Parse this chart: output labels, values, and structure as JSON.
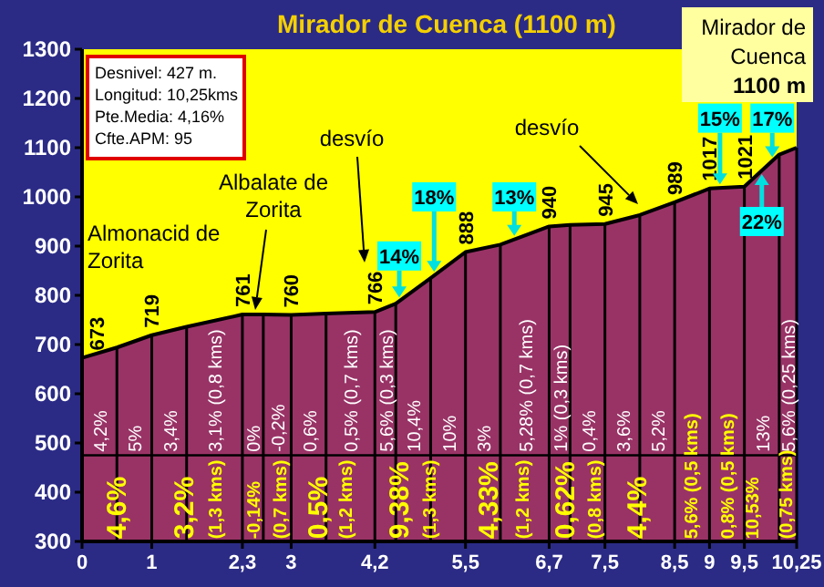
{
  "chart_data": {
    "type": "area",
    "title": "Mirador de Cuenca (1100 m)",
    "x": [
      0,
      0.5,
      1,
      1.5,
      2.3,
      2.6,
      3,
      3.5,
      4.2,
      4.5,
      5,
      5.5,
      6,
      6.7,
      7,
      7.5,
      8,
      8.5,
      9,
      9.5,
      10,
      10.25
    ],
    "series": [
      {
        "color": "#993366",
        "values": [
          673,
          694,
          719,
          736,
          761,
          761,
          760,
          763,
          766,
          783,
          835,
          888,
          903,
          940,
          943,
          945,
          963,
          989,
          1017,
          1021,
          1086,
          1100
        ],
        "value_labels": [
          "673",
          null,
          "719",
          null,
          "761",
          null,
          "760",
          null,
          "766",
          null,
          null,
          "888",
          null,
          "940",
          null,
          "945",
          null,
          "989",
          "1017",
          "1021",
          null,
          null
        ]
      }
    ],
    "xlim": [
      0,
      10.25
    ],
    "ylim": [
      300,
      1300
    ],
    "xticks": [
      0,
      1,
      {
        "value": 2.3,
        "label": "2,3"
      },
      3,
      {
        "value": 4.2,
        "label": "4,2"
      },
      {
        "value": 5.5,
        "label": "5,5"
      },
      {
        "value": 6.7,
        "label": "6,7"
      },
      {
        "value": 7.5,
        "label": "7,5"
      },
      {
        "value": 8.5,
        "label": "8,5"
      },
      9,
      {
        "value": 9.5,
        "label": "9,5"
      },
      {
        "value": 10.25,
        "label": "10,25"
      }
    ],
    "yticks": [
      300,
      400,
      500,
      600,
      700,
      800,
      900,
      1000,
      1100,
      1200,
      1300
    ],
    "ref_lines": [
      {
        "axis": "y",
        "value": 475,
        "color": "#000000"
      }
    ],
    "annotations": [
      "Desnivel: 427 m.",
      "Longitud: 10,25kms",
      "Pte.Media: 4,16%",
      "Cfte.APM: 95",
      "Mirador de Cuenca 1100 m",
      "Almonacid de Zorita",
      "Albalate de Zorita",
      "desvío",
      "desvío",
      {
        "text": "4,2%",
        "x": 0.25,
        "y": 482
      },
      {
        "text": "5%",
        "x": 0.75,
        "y": 482
      },
      {
        "text": "3,4%",
        "x": 1.25,
        "y": 482
      },
      {
        "text": "3,1% (0,8 kms)",
        "x": 1.9,
        "y": 482
      },
      {
        "text": "0%",
        "x": 2.45,
        "y": 482
      },
      {
        "text": "-0,2%",
        "x": 2.8,
        "y": 482
      },
      {
        "text": "0,6%",
        "x": 3.25,
        "y": 482
      },
      {
        "text": "0,5% (0,7 kms)",
        "x": 3.85,
        "y": 482
      },
      {
        "text": "5,6% (0,3 kms)",
        "x": 4.35,
        "y": 482
      },
      {
        "text": "10,4%",
        "x": 4.75,
        "y": 482
      },
      {
        "text": "10%",
        "x": 5.25,
        "y": 482
      },
      {
        "text": "3%",
        "x": 5.75,
        "y": 482
      },
      {
        "text": "5,28% (0,7 kms)",
        "x": 6.35,
        "y": 482
      },
      {
        "text": "1% (0,3 kms)",
        "x": 6.85,
        "y": 482
      },
      {
        "text": "0,4%",
        "x": 7.25,
        "y": 482
      },
      {
        "text": "3,6%",
        "x": 7.75,
        "y": 482
      },
      {
        "text": "5,2%",
        "x": 8.25,
        "y": 482
      },
      {
        "text": "13%",
        "x": 9.75,
        "y": 482
      },
      {
        "text": "5,6% (0,25 kms)",
        "x": 10.12,
        "y": 482
      },
      {
        "text": "4,6%",
        "x": 0.47,
        "y": 305
      },
      {
        "text": "3,2%",
        "x": 1.44,
        "y": 305
      },
      {
        "text": "(1,3 kms)",
        "x": 1.9,
        "y": 305
      },
      {
        "text": "-0,14%",
        "x": 2.44,
        "y": 305
      },
      {
        "text": "(0,7 kms)",
        "x": 2.83,
        "y": 305
      },
      {
        "text": "0,5%",
        "x": 3.36,
        "y": 305
      },
      {
        "text": "(1,2 kms)",
        "x": 3.77,
        "y": 305
      },
      {
        "text": "9,38%",
        "x": 4.53,
        "y": 305
      },
      {
        "text": "(1,3 kms)",
        "x": 4.97,
        "y": 305
      },
      {
        "text": "4,33%",
        "x": 5.8,
        "y": 305
      },
      {
        "text": "(1,2 kms)",
        "x": 6.3,
        "y": 305
      },
      {
        "text": "0,62%",
        "x": 6.9,
        "y": 305
      },
      {
        "text": "(0,8 kms)",
        "x": 7.33,
        "y": 305
      },
      {
        "text": "4,4%",
        "x": 7.93,
        "y": 305
      },
      {
        "text": "5,6% (0,5 kms)",
        "x": 8.72,
        "y": 305
      },
      {
        "text": "0,8% (0,5 kms)",
        "x": 9.24,
        "y": 305
      },
      {
        "text": "10,53%",
        "x": 9.6,
        "y": 305
      },
      {
        "text": "(0,75 kms)",
        "x": 10.08,
        "y": 305
      },
      {
        "text": "14%",
        "x": 4.55,
        "y": 880
      },
      {
        "text": "18%",
        "x": 5.05,
        "y": 1000
      },
      {
        "text": "13%",
        "x": 6.2,
        "y": 1000
      },
      {
        "text": "15%",
        "x": 9.15,
        "y": 1160
      },
      {
        "text": "17%",
        "x": 9.9,
        "y": 1160
      },
      {
        "text": "22%",
        "x": 9.75,
        "y": 950
      }
    ]
  }
}
